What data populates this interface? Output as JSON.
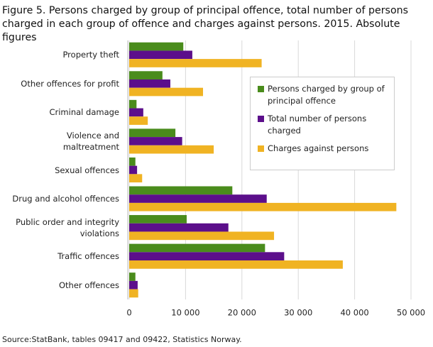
{
  "chart_data": {
    "type": "hbar",
    "title": "Figure 5. Persons charged by group of principal offence, total number of persons charged in each group of offence and charges against persons. 2015. Absolute figures",
    "categories": [
      "Property theft",
      "Other offences for profit",
      "Criminal damage",
      "Violence and maltreatment",
      "Sexual offences",
      "Drug and alcohol offences",
      "Public order and integrity violations",
      "Traffic offences",
      "Other offences"
    ],
    "series": [
      {
        "name": "Persons charged by group of principal offence",
        "color": "#4a8c1c",
        "values": [
          9600,
          5900,
          1300,
          8200,
          1100,
          18300,
          10200,
          24100,
          1100
        ]
      },
      {
        "name": "Total number of persons charged",
        "color": "#5c0f8b",
        "values": [
          11200,
          7300,
          2500,
          9400,
          1400,
          24400,
          17600,
          27500,
          1500
        ]
      },
      {
        "name": "Charges against persons",
        "color": "#f0b323",
        "values": [
          23500,
          13100,
          3300,
          15000,
          2300,
          47400,
          25700,
          37900,
          1600
        ]
      }
    ],
    "xlim": [
      0,
      50000
    ],
    "xticks": [
      0,
      {
        "value": 10000,
        "label": "10 000"
      },
      {
        "value": 20000,
        "label": "20 000"
      },
      {
        "value": 30000,
        "label": "30 000"
      },
      {
        "value": 40000,
        "label": "40 000"
      },
      {
        "value": 50000,
        "label": "50 000"
      }
    ],
    "grid": true,
    "source": "Source:StatBank, tables 09417 and 09422, Statistics Norway."
  }
}
